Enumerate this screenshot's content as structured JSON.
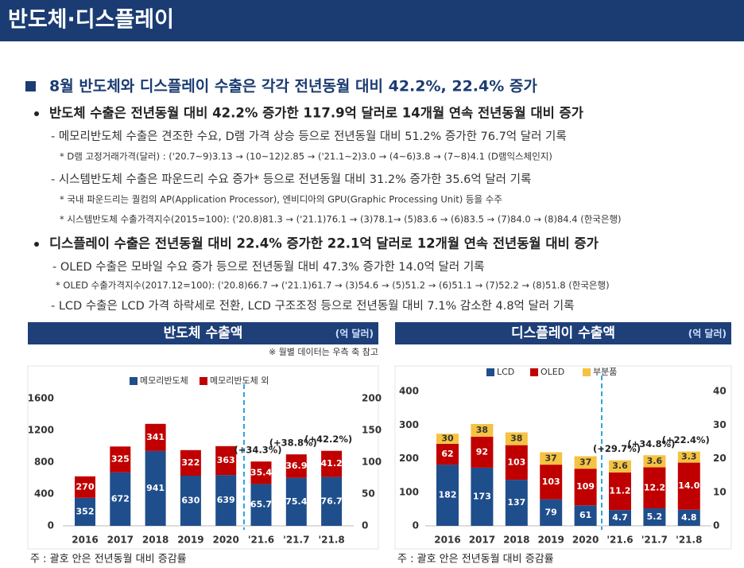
{
  "title": "반도체·디스플레이",
  "headline": "8월 반도체와 디스플레이 수출은 각각 전년동월 대비 42.2%, 22.4% 증가",
  "sections": [
    {
      "heading": "반도체 수출은 전년동월 대비 42.2% 증가한 117.9억 달러로 14개월 연속 전년동월 대비 증가",
      "items": [
        {
          "text": "- 메모리반도체 수출은 견조한 수요, D램 가격 상승 등으로 전년동월 대비 51.2% 증가한 76.7억 달러 기록",
          "notes": [
            "* D램 고정거래가격(달러) : ('20.7~9)3.13 → (10~12)2.85 → ('21.1~2)3.0 → (4~6)3.8 → (7~8)4.1 (D램익스체인지)"
          ]
        },
        {
          "text": "- 시스템반도체 수출은 파운드리 수요 증가* 등으로 전년동월 대비 31.2% 증가한 35.6억 달러 기록",
          "notes": [
            "* 국내 파운드리는 퀄컴의 AP(Application Processor), 엔비디아의 GPU(Graphic Processing Unit) 등을 수주",
            "* 시스템반도체 수출가격지수(2015=100): ('20.8)81.3 → ('21.1)76.1 → (3)78.1→ (5)83.6 → (6)83.5 → (7)84.0 → (8)84.4 (한국은행)"
          ]
        }
      ]
    },
    {
      "heading": "디스플레이 수출은 전년동월 대비 22.4% 증가한 22.1억 달러로 12개월 연속 전년동월 대비 증가",
      "items": [
        {
          "text": "- OLED 수출은 모바일 수요 증가 등으로 전년동월 대비 47.3% 증가한 14.0억 달러 기록",
          "notes": [
            "* OLED 수출가격지수(2017.12=100): ('20.8)66.7 → ('21.1)61.7 → (3)54.6 → (5)51.2 → (6)51.1 → (7)52.2 → (8)51.8 (한국은행)"
          ]
        },
        {
          "text": "- LCD 수출은 LCD 가격 하락세로 전환, LCD 구조조정 등으로 전년동월 대비 7.1% 감소한 4.8억 달러 기록"
        }
      ]
    }
  ],
  "chart_data": [
    {
      "type": "bar",
      "stacked": true,
      "title": "반도체 수출액",
      "unit": "(억 달러)",
      "subtitle": "※ 월별 데이터는 우측 축 참고",
      "note": "주 : 괄호 안은 전년동월 대비 증감률",
      "categories": [
        "2016",
        "2017",
        "2018",
        "2019",
        "2020"
      ],
      "y2_categories": [
        "'21.6",
        "'21.7",
        "'21.8"
      ],
      "y2_annotations": [
        "(+34.3%)",
        "(+38.8%)",
        "(+42.2%)"
      ],
      "ylim": [
        0,
        1600
      ],
      "yticks": [
        0,
        400,
        800,
        1200,
        1600
      ],
      "y2lim": [
        0,
        200
      ],
      "y2ticks": [
        0,
        50,
        100,
        150,
        200
      ],
      "series": [
        {
          "name": "메모리반도체",
          "color": "#1f4e8c",
          "values": [
            352,
            672,
            941,
            630,
            639
          ],
          "y2_values": [
            65.7,
            75.4,
            76.7
          ]
        },
        {
          "name": "메모리반도체 외",
          "color": "#c00000",
          "values": [
            270,
            325,
            341,
            322,
            363
          ],
          "y2_values": [
            35.4,
            36.9,
            41.2
          ]
        }
      ]
    },
    {
      "type": "bar",
      "stacked": true,
      "title": "디스플레이 수출액",
      "unit": "(억 달러)",
      "note": "주 : 괄호 안은 전년동월 대비 증감률",
      "categories": [
        "2016",
        "2017",
        "2018",
        "2019",
        "2020"
      ],
      "y2_categories": [
        "'21.6",
        "'21.7",
        "'21.8"
      ],
      "y2_annotations": [
        "(+29.7%)",
        "(+34.8%)",
        "(+22.4%)"
      ],
      "ylim": [
        0,
        400
      ],
      "yticks": [
        0,
        100,
        200,
        300,
        400
      ],
      "y2lim": [
        0,
        40
      ],
      "y2ticks": [
        0,
        10,
        20,
        30,
        40
      ],
      "series": [
        {
          "name": "LCD",
          "color": "#1f4e8c",
          "values": [
            182,
            173,
            137,
            79,
            61
          ],
          "y2_values": [
            4.7,
            5.2,
            4.8
          ]
        },
        {
          "name": "OLED",
          "color": "#c00000",
          "values": [
            62,
            92,
            103,
            103,
            109
          ],
          "y2_values": [
            11.2,
            12.2,
            14.0
          ],
          "y2_value_labels": [
            "11.2",
            "12.2",
            "14.0"
          ]
        },
        {
          "name": "부분품",
          "color": "#f5c242",
          "values": [
            30,
            38,
            38,
            37,
            37
          ],
          "y2_values": [
            3.6,
            3.6,
            3.3
          ]
        }
      ]
    }
  ]
}
